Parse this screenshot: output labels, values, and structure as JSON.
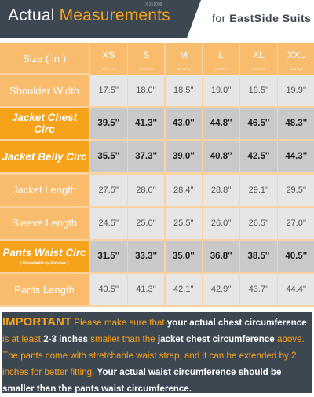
{
  "header": {
    "title_part1": "Actual ",
    "title_part2": "Measurements",
    "brand_prefix": "for ",
    "brand_name": "EastSide Suits",
    "tiny_code": "X 251008",
    "colors": {
      "dark": "#3d4752",
      "accent": "#f7a21b"
    }
  },
  "table": {
    "size_header": "Size ( in )",
    "sizes": [
      {
        "label": "XS",
        "note": "26/27/28"
      },
      {
        "label": "S",
        "note": "28/29/30"
      },
      {
        "label": "M",
        "note": "30/31/32"
      },
      {
        "label": "L",
        "note": "32/33/34"
      },
      {
        "label": "XL",
        "note": "34/35/36"
      },
      {
        "label": "XXL",
        "note": "36/37/38"
      }
    ],
    "rows": [
      {
        "label": "Shoulder Width",
        "sub": "",
        "emphasis": false,
        "values": [
          "17.5''",
          "18.0''",
          "18.5''",
          "19.0''",
          "19.5''",
          "19.9''"
        ]
      },
      {
        "label": "Jacket Chest Circ",
        "sub": "",
        "emphasis": true,
        "values": [
          "39.5''",
          "41.3''",
          "43.0''",
          "44.8''",
          "46.5''",
          "48.3''"
        ]
      },
      {
        "label": "Jacket Belly Circ",
        "sub": "",
        "emphasis": true,
        "values": [
          "35.5''",
          "37.3''",
          "39.0''",
          "40.8''",
          "42.5''",
          "44.3''"
        ]
      },
      {
        "label": "Jacket Length",
        "sub": "",
        "emphasis": false,
        "values": [
          "27.5''",
          "28.0''",
          "28.4''",
          "28.8''",
          "29.1''",
          "29.5''"
        ]
      },
      {
        "label": "Sleeve Length",
        "sub": "",
        "emphasis": false,
        "values": [
          "24.5''",
          "25.0''",
          "25.5''",
          "26.0''",
          "26.5''",
          "27.0''"
        ]
      },
      {
        "label": "Pants Waist Circ",
        "sub": "( Stretchable by 2 inches )",
        "emphasis": true,
        "values": [
          "31.5''",
          "33.3''",
          "35.0''",
          "36.8''",
          "38.5''",
          "40.5''"
        ]
      },
      {
        "label": "Pants Length",
        "sub": "",
        "emphasis": false,
        "values": [
          "40.5''",
          "41.3''",
          "42.1''",
          "42.9''",
          "43.7''",
          "44.4''"
        ]
      }
    ]
  },
  "note": {
    "important": "IMPORTANT",
    "s1": " Please make sure that ",
    "b1": "your actual chest circumference",
    "s2": " is at least ",
    "b2": "2-3 inches",
    "s3": " smaller than the ",
    "b3": "jacket chest circumference",
    "s4": " above. The pants come with stretchable waist strap, and it can be extended by 2 inches for better fitting. ",
    "b4": "Your actual waist circumference should be smaller than the pants waist circumference."
  }
}
